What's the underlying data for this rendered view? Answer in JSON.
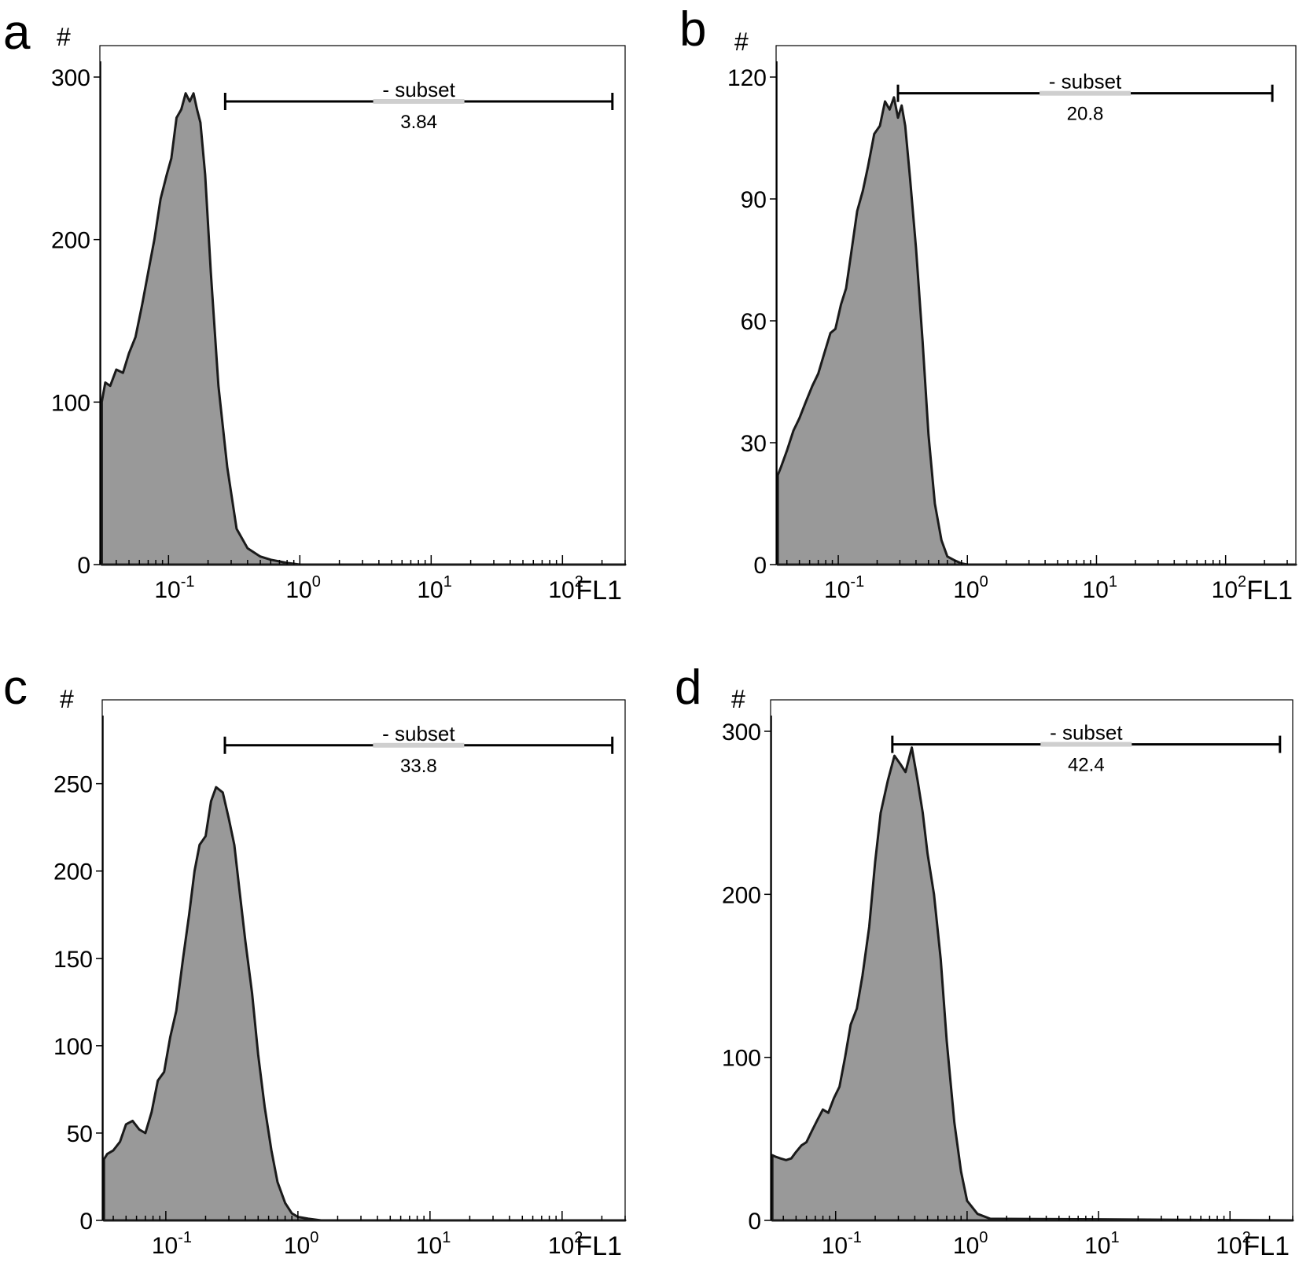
{
  "colors": {
    "fill": "#999999",
    "stroke": "#1a1a1a",
    "gate": "#000000"
  },
  "chart_data": [
    {
      "type": "area",
      "panel": "a",
      "ylabel": "#",
      "xlabel": "FL1",
      "xscale": "log",
      "xlim": [
        0.03,
        300
      ],
      "ylim": [
        0,
        300
      ],
      "yticks": [
        0,
        100,
        200,
        300
      ],
      "xticks": [
        {
          "base": "10",
          "exp": "-1",
          "value": 0.1
        },
        {
          "base": "10",
          "exp": "0",
          "value": 1
        },
        {
          "base": "10",
          "exp": "1",
          "value": 10
        },
        {
          "base": "10",
          "exp": "2",
          "value": 100
        }
      ],
      "gate": {
        "name": "- subset",
        "value": "3.84",
        "from": 0.27,
        "to": 240,
        "y": 285
      },
      "x": [
        0.031,
        0.033,
        0.036,
        0.04,
        0.045,
        0.05,
        0.056,
        0.063,
        0.07,
        0.078,
        0.087,
        0.097,
        0.105,
        0.115,
        0.125,
        0.135,
        0.145,
        0.155,
        0.165,
        0.175,
        0.19,
        0.21,
        0.24,
        0.28,
        0.33,
        0.4,
        0.5,
        0.6,
        0.8,
        1.0,
        300
      ],
      "y": [
        100,
        112,
        110,
        120,
        118,
        130,
        140,
        160,
        180,
        200,
        225,
        240,
        250,
        275,
        280,
        290,
        285,
        290,
        280,
        272,
        240,
        180,
        110,
        60,
        22,
        10,
        5,
        3,
        1,
        0,
        0
      ]
    },
    {
      "type": "area",
      "panel": "b",
      "ylabel": "#",
      "xlabel": "FL1",
      "xscale": "log",
      "xlim": [
        0.033,
        350
      ],
      "ylim": [
        0,
        120
      ],
      "yticks": [
        0,
        30,
        60,
        90,
        120
      ],
      "xticks": [
        {
          "base": "10",
          "exp": "-1",
          "value": 0.1
        },
        {
          "base": "10",
          "exp": "0",
          "value": 1
        },
        {
          "base": "10",
          "exp": "1",
          "value": 10
        },
        {
          "base": "10",
          "exp": "2",
          "value": 100
        }
      ],
      "gate": {
        "name": "- subset",
        "value": "20.8",
        "from": 0.29,
        "to": 230,
        "y": 116
      },
      "x": [
        0.034,
        0.036,
        0.04,
        0.045,
        0.05,
        0.056,
        0.063,
        0.07,
        0.078,
        0.087,
        0.095,
        0.105,
        0.115,
        0.125,
        0.14,
        0.155,
        0.17,
        0.19,
        0.21,
        0.23,
        0.25,
        0.27,
        0.29,
        0.31,
        0.33,
        0.36,
        0.4,
        0.45,
        0.5,
        0.56,
        0.63,
        0.7,
        0.8,
        0.9,
        1.0,
        350
      ],
      "y": [
        22,
        24,
        28,
        33,
        36,
        40,
        44,
        47,
        52,
        57,
        58,
        64,
        68,
        76,
        87,
        92,
        98,
        106,
        108,
        114,
        112,
        115,
        110,
        113,
        108,
        95,
        78,
        55,
        32,
        15,
        6,
        2,
        1,
        0.3,
        0,
        0
      ]
    },
    {
      "type": "area",
      "panel": "c",
      "ylabel": "#",
      "xlabel": "FL1",
      "xscale": "log",
      "xlim": [
        0.033,
        300
      ],
      "ylim": [
        0,
        280
      ],
      "yticks": [
        0,
        50,
        100,
        150,
        200,
        250
      ],
      "xticks": [
        {
          "base": "10",
          "exp": "-1",
          "value": 0.1
        },
        {
          "base": "10",
          "exp": "0",
          "value": 1
        },
        {
          "base": "10",
          "exp": "1",
          "value": 10
        },
        {
          "base": "10",
          "exp": "2",
          "value": 100
        }
      ],
      "gate": {
        "name": "- subset",
        "value": "33.8",
        "from": 0.28,
        "to": 240,
        "y": 272
      },
      "x": [
        0.034,
        0.036,
        0.04,
        0.045,
        0.05,
        0.056,
        0.063,
        0.07,
        0.078,
        0.087,
        0.097,
        0.108,
        0.12,
        0.135,
        0.15,
        0.165,
        0.18,
        0.2,
        0.22,
        0.24,
        0.27,
        0.3,
        0.33,
        0.36,
        0.4,
        0.45,
        0.5,
        0.56,
        0.63,
        0.7,
        0.8,
        0.9,
        1.0,
        1.2,
        1.5,
        300
      ],
      "y": [
        35,
        38,
        40,
        45,
        55,
        57,
        52,
        50,
        62,
        80,
        85,
        105,
        120,
        150,
        175,
        200,
        215,
        220,
        240,
        248,
        245,
        230,
        215,
        190,
        160,
        130,
        95,
        65,
        40,
        22,
        10,
        4,
        2,
        1,
        0,
        0
      ]
    },
    {
      "type": "area",
      "panel": "d",
      "ylabel": "#",
      "xlabel": "FL1",
      "xscale": "log",
      "xlim": [
        0.032,
        300
      ],
      "ylim": [
        0,
        300
      ],
      "yticks": [
        0,
        100,
        200,
        300
      ],
      "xticks": [
        {
          "base": "10",
          "exp": "-1",
          "value": 0.1
        },
        {
          "base": "10",
          "exp": "0",
          "value": 1
        },
        {
          "base": "10",
          "exp": "1",
          "value": 10
        },
        {
          "base": "10",
          "exp": "2",
          "value": 100
        }
      ],
      "gate": {
        "name": "- subset",
        "value": "42.4",
        "from": 0.27,
        "to": 240,
        "y": 292
      },
      "x": [
        0.033,
        0.035,
        0.038,
        0.042,
        0.046,
        0.05,
        0.055,
        0.06,
        0.066,
        0.073,
        0.08,
        0.088,
        0.097,
        0.107,
        0.118,
        0.13,
        0.145,
        0.16,
        0.18,
        0.2,
        0.22,
        0.25,
        0.28,
        0.31,
        0.34,
        0.38,
        0.42,
        0.46,
        0.5,
        0.56,
        0.63,
        0.7,
        0.8,
        0.9,
        1.0,
        1.2,
        1.5,
        300
      ],
      "y": [
        40,
        39,
        38,
        37,
        38,
        42,
        46,
        48,
        55,
        62,
        68,
        66,
        75,
        82,
        100,
        120,
        130,
        150,
        180,
        220,
        250,
        270,
        285,
        280,
        275,
        290,
        270,
        250,
        225,
        200,
        160,
        110,
        60,
        30,
        12,
        4,
        1,
        0
      ]
    }
  ]
}
